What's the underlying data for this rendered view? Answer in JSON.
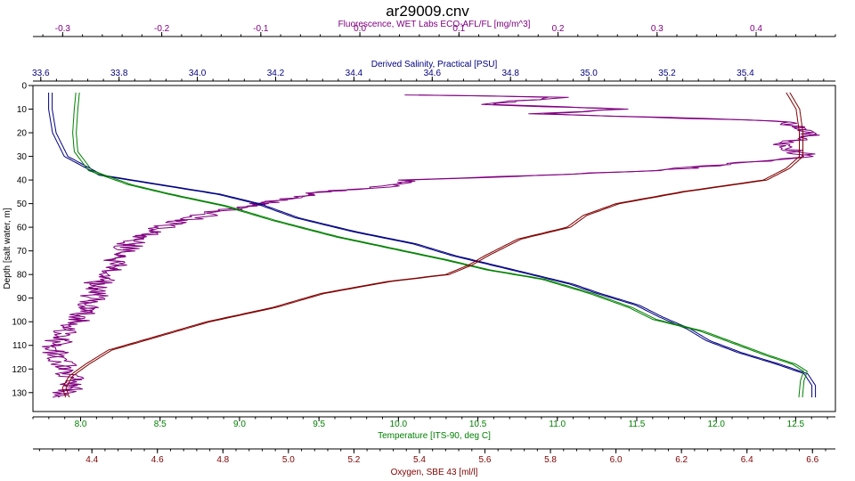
{
  "chart_data": {
    "type": "line",
    "title": "ar29009.cnv",
    "y_axis": {
      "label": "Depth [salt water, m]",
      "range": [
        0,
        138
      ],
      "ticks": [
        0,
        10,
        20,
        30,
        40,
        50,
        60,
        70,
        80,
        90,
        100,
        110,
        120,
        130
      ],
      "reversed": true,
      "color": "#000000"
    },
    "x_axes": [
      {
        "id": "fluorescence",
        "position": "top",
        "level": 0,
        "label": "Fluorescence, WET Labs ECO-AFL/FL [mg/m^3]",
        "color": "#800080",
        "range": [
          -0.33,
          0.48
        ],
        "ticks": [
          -0.3,
          -0.2,
          -0.1,
          0.0,
          0.1,
          0.2,
          0.3,
          0.4
        ],
        "tick_labels": [
          "-0.3",
          "-0.2",
          "-0.1",
          "0.0",
          "0.1",
          "0.2",
          "0.3",
          "0.4"
        ]
      },
      {
        "id": "salinity",
        "position": "top",
        "level": 1,
        "label": "Derived Salinity, Practical [PSU]",
        "color": "#000080",
        "range": [
          33.58,
          35.63
        ],
        "ticks": [
          33.6,
          33.8,
          34.0,
          34.2,
          34.4,
          34.6,
          34.8,
          35.0,
          35.2,
          35.4
        ],
        "tick_labels": [
          "33.6",
          "33.8",
          "34.0",
          "34.2",
          "34.4",
          "34.6",
          "34.8",
          "35.0",
          "35.2",
          "35.4"
        ]
      },
      {
        "id": "temperature",
        "position": "bottom",
        "level": 0,
        "label": "Temperature [ITS-90, deg C]",
        "color": "#008000",
        "range": [
          7.7,
          12.75
        ],
        "ticks": [
          8.0,
          8.5,
          9.0,
          9.5,
          10.0,
          10.5,
          11.0,
          11.5,
          12.0,
          12.5
        ],
        "tick_labels": [
          "8.0",
          "8.5",
          "9.0",
          "9.5",
          "10.0",
          "10.5",
          "11.0",
          "11.5",
          "12.0",
          "12.5"
        ]
      },
      {
        "id": "oxygen",
        "position": "bottom",
        "level": 1,
        "label": "Oxygen, SBE 43 [ml/l]",
        "color": "#800000",
        "range": [
          4.22,
          6.67
        ],
        "ticks": [
          4.4,
          4.6,
          4.8,
          5.0,
          5.2,
          5.4,
          5.6,
          5.8,
          6.0,
          6.2,
          6.4,
          6.6
        ],
        "tick_labels": [
          "4.4",
          "4.6",
          "4.8",
          "5.0",
          "5.2",
          "5.4",
          "5.6",
          "5.8",
          "6.0",
          "6.2",
          "6.4",
          "6.6"
        ]
      }
    ],
    "series": [
      {
        "axis": "fluorescence",
        "color": "#800080",
        "jitter": 0.012,
        "points": [
          [
            0.05,
            4
          ],
          [
            0.2,
            5
          ],
          [
            0.12,
            8
          ],
          [
            0.27,
            10
          ],
          [
            0.18,
            12
          ],
          [
            0.42,
            15
          ],
          [
            0.46,
            20
          ],
          [
            0.42,
            25
          ],
          [
            0.45,
            30
          ],
          [
            0.3,
            36
          ],
          [
            0.05,
            40
          ],
          [
            0.02,
            43
          ],
          [
            -0.04,
            45
          ],
          [
            -0.06,
            47
          ],
          [
            -0.1,
            50
          ],
          [
            -0.14,
            53
          ],
          [
            -0.18,
            57
          ],
          [
            -0.2,
            60
          ],
          [
            -0.23,
            65
          ],
          [
            -0.24,
            70
          ],
          [
            -0.25,
            75
          ],
          [
            -0.26,
            80
          ],
          [
            -0.27,
            85
          ],
          [
            -0.27,
            90
          ],
          [
            -0.28,
            95
          ],
          [
            -0.29,
            100
          ],
          [
            -0.3,
            105
          ],
          [
            -0.31,
            110
          ],
          [
            -0.31,
            115
          ],
          [
            -0.3,
            120
          ],
          [
            -0.29,
            125
          ],
          [
            -0.3,
            130
          ],
          [
            -0.31,
            132
          ]
        ]
      },
      {
        "axis": "salinity",
        "color": "#000080",
        "jitter": 0,
        "points": [
          [
            33.62,
            3
          ],
          [
            33.62,
            10
          ],
          [
            33.63,
            20
          ],
          [
            33.66,
            30
          ],
          [
            33.75,
            38
          ],
          [
            33.9,
            42
          ],
          [
            34.05,
            46
          ],
          [
            34.15,
            50
          ],
          [
            34.25,
            56
          ],
          [
            34.4,
            62
          ],
          [
            34.55,
            67
          ],
          [
            34.65,
            72
          ],
          [
            34.75,
            76
          ],
          [
            34.85,
            80
          ],
          [
            34.95,
            84
          ],
          [
            35.02,
            88
          ],
          [
            35.12,
            93
          ],
          [
            35.18,
            98
          ],
          [
            35.25,
            103
          ],
          [
            35.3,
            108
          ],
          [
            35.38,
            113
          ],
          [
            35.48,
            118
          ],
          [
            35.55,
            122
          ],
          [
            35.57,
            127
          ],
          [
            35.57,
            132
          ]
        ]
      },
      {
        "axis": "temperature",
        "color": "#008000",
        "jitter": 0,
        "points": [
          [
            7.97,
            3
          ],
          [
            7.96,
            10
          ],
          [
            7.95,
            20
          ],
          [
            7.96,
            28
          ],
          [
            8.05,
            36
          ],
          [
            8.3,
            42
          ],
          [
            8.55,
            46
          ],
          [
            8.9,
            51
          ],
          [
            9.2,
            57
          ],
          [
            9.6,
            64
          ],
          [
            9.95,
            69
          ],
          [
            10.3,
            74
          ],
          [
            10.55,
            78
          ],
          [
            10.9,
            82
          ],
          [
            11.2,
            88
          ],
          [
            11.45,
            94
          ],
          [
            11.6,
            99
          ],
          [
            11.9,
            104
          ],
          [
            12.1,
            109
          ],
          [
            12.3,
            114
          ],
          [
            12.48,
            118
          ],
          [
            12.55,
            121
          ],
          [
            12.53,
            125
          ],
          [
            12.52,
            132
          ]
        ]
      },
      {
        "axis": "oxygen",
        "color": "#800000",
        "jitter": 0,
        "points": [
          [
            6.52,
            3
          ],
          [
            6.55,
            10
          ],
          [
            6.56,
            20
          ],
          [
            6.56,
            30
          ],
          [
            6.52,
            35
          ],
          [
            6.45,
            40
          ],
          [
            6.2,
            45
          ],
          [
            6.0,
            50
          ],
          [
            5.9,
            55
          ],
          [
            5.85,
            60
          ],
          [
            5.7,
            65
          ],
          [
            5.6,
            72
          ],
          [
            5.55,
            76
          ],
          [
            5.48,
            80
          ],
          [
            5.3,
            83
          ],
          [
            5.1,
            88
          ],
          [
            4.95,
            94
          ],
          [
            4.75,
            100
          ],
          [
            4.6,
            106
          ],
          [
            4.45,
            112
          ],
          [
            4.38,
            118
          ],
          [
            4.33,
            123
          ],
          [
            4.31,
            128
          ],
          [
            4.32,
            132
          ]
        ]
      }
    ],
    "grid": false,
    "legend": "none"
  }
}
